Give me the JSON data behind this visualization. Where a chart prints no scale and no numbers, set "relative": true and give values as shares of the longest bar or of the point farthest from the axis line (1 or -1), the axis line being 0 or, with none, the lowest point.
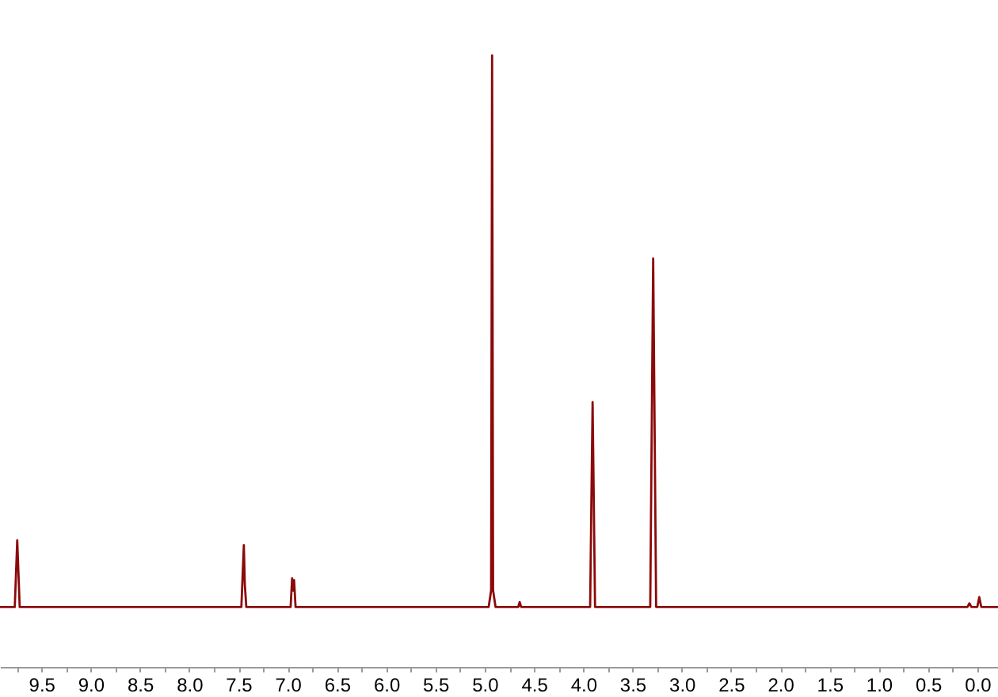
{
  "chart_data": {
    "type": "line",
    "relative": true,
    "x": [
      9.92,
      9.77,
      9.745,
      9.72,
      7.47,
      7.445,
      7.435,
      7.42,
      6.97,
      6.955,
      6.945,
      6.935,
      6.92,
      4.96,
      4.935,
      4.925,
      4.915,
      4.89,
      4.66,
      4.645,
      4.63,
      3.93,
      3.905,
      3.88,
      3.32,
      3.29,
      3.26,
      0.1,
      0.08,
      0.06,
      0.0,
      -0.02,
      -0.04,
      -0.21
    ],
    "series": [
      {
        "color": "#8b0a0a",
        "values": [
          0.098,
          0.098,
          0.207,
          0.098,
          0.098,
          0.199,
          0.135,
          0.098,
          0.098,
          0.145,
          0.125,
          0.142,
          0.098,
          0.098,
          0.125,
          1,
          0.125,
          0.098,
          0.098,
          0.106,
          0.098,
          0.098,
          0.433,
          0.098,
          0.098,
          0.668,
          0.098,
          0.098,
          0.104,
          0.098,
          0.098,
          0.114,
          0.098,
          0.098
        ]
      }
    ],
    "xlim": [
      9.92,
      -0.21
    ],
    "xticks": [
      {
        "value": 9.75,
        "label": null
      },
      9.5,
      {
        "value": 9.25,
        "label": null
      },
      {
        "value": 9,
        "label": "9.0"
      },
      {
        "value": 8.75,
        "label": null
      },
      8.5,
      {
        "value": 8.25,
        "label": null
      },
      {
        "value": 8,
        "label": "8.0"
      },
      {
        "value": 7.75,
        "label": null
      },
      7.5,
      {
        "value": 7.25,
        "label": null
      },
      {
        "value": 7,
        "label": "7.0"
      },
      {
        "value": 6.75,
        "label": null
      },
      6.5,
      {
        "value": 6.25,
        "label": null
      },
      {
        "value": 6,
        "label": "6.0"
      },
      {
        "value": 5.75,
        "label": null
      },
      5.5,
      {
        "value": 5.25,
        "label": null
      },
      {
        "value": 5,
        "label": "5.0"
      },
      {
        "value": 4.75,
        "label": null
      },
      4.5,
      {
        "value": 4.25,
        "label": null
      },
      {
        "value": 4,
        "label": "4.0"
      },
      {
        "value": 3.75,
        "label": null
      },
      3.5,
      {
        "value": 3.25,
        "label": null
      },
      {
        "value": 3,
        "label": "3.0"
      },
      {
        "value": 2.75,
        "label": null
      },
      2.5,
      {
        "value": 2.25,
        "label": null
      },
      {
        "value": 2,
        "label": "2.0"
      },
      {
        "value": 1.75,
        "label": null
      },
      1.5,
      {
        "value": 1.25,
        "label": null
      },
      {
        "value": 1,
        "label": "1.0"
      },
      {
        "value": 0.75,
        "label": null
      },
      0.5,
      {
        "value": 0.25,
        "label": null
      },
      {
        "value": 0,
        "label": "0.0"
      }
    ]
  }
}
